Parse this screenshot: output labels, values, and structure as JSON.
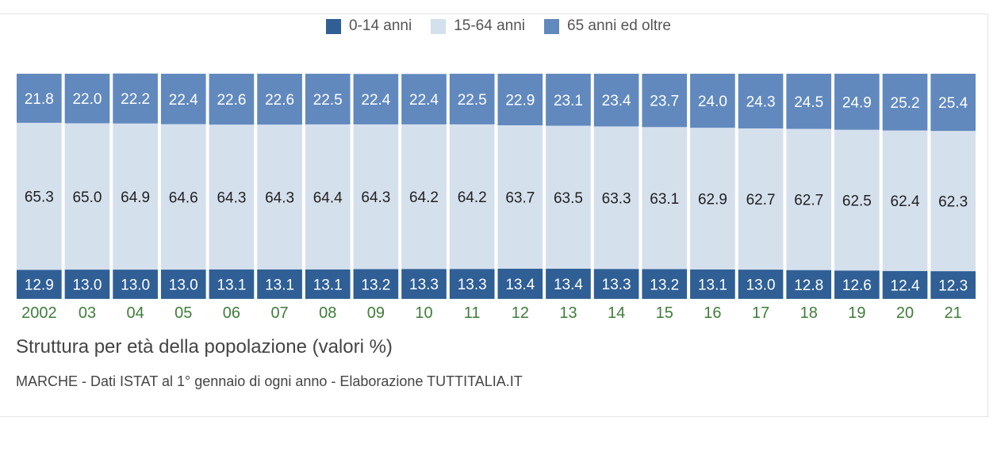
{
  "chart_data": {
    "type": "bar",
    "stacked": true,
    "percent_stacked": true,
    "title": "Struttura per età della popolazione (valori %)",
    "source": "MARCHE - Dati ISTAT al 1° gennaio di ogni anno - Elaborazione TUTTITALIA.IT",
    "categories": [
      "2002",
      "03",
      "04",
      "05",
      "06",
      "07",
      "08",
      "09",
      "10",
      "11",
      "12",
      "13",
      "14",
      "15",
      "16",
      "17",
      "18",
      "19",
      "20",
      "21"
    ],
    "series": [
      {
        "name": "0-14 anni",
        "color": "#2f5f95",
        "label_color": "#ffffff",
        "values": [
          12.9,
          13.0,
          13.0,
          13.0,
          13.1,
          13.1,
          13.1,
          13.2,
          13.3,
          13.3,
          13.4,
          13.4,
          13.3,
          13.2,
          13.1,
          13.0,
          12.8,
          12.6,
          12.4,
          12.3
        ]
      },
      {
        "name": "15-64 anni",
        "color": "#d5e0ed",
        "label_color": "#222222",
        "values": [
          65.3,
          65.0,
          64.9,
          64.6,
          64.3,
          64.3,
          64.4,
          64.3,
          64.2,
          64.2,
          63.7,
          63.5,
          63.3,
          63.1,
          62.9,
          62.7,
          62.7,
          62.5,
          62.4,
          62.3
        ]
      },
      {
        "name": "65 anni ed oltre",
        "color": "#6189be",
        "label_color": "#ffffff",
        "values": [
          21.8,
          22.0,
          22.2,
          22.4,
          22.6,
          22.6,
          22.5,
          22.4,
          22.4,
          22.5,
          22.9,
          23.1,
          23.4,
          23.7,
          24.0,
          24.3,
          24.5,
          24.9,
          25.2,
          25.4
        ]
      }
    ],
    "ylim": [
      0,
      100
    ],
    "category_label_color": "#3f7d3a",
    "legend_position": "top-center",
    "grid": false
  }
}
